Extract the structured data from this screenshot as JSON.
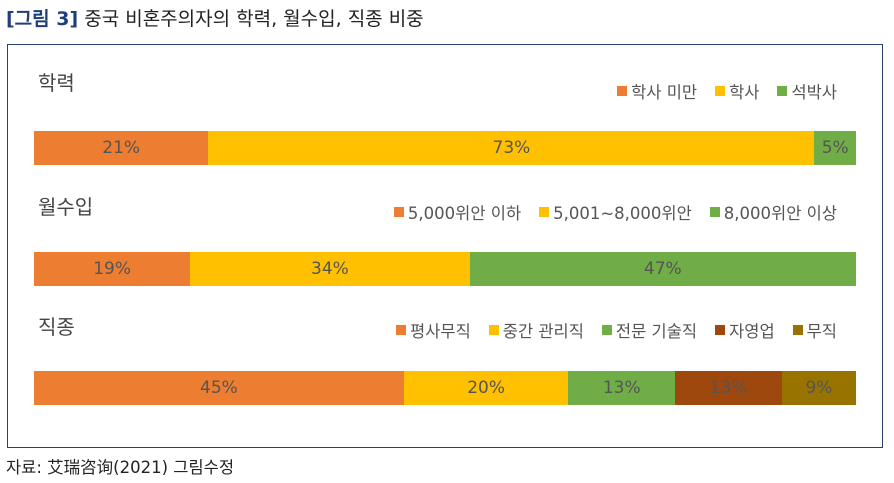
{
  "figure": {
    "number": "[그림 3]",
    "title": "중국 비혼주의자의 학력, 월수입, 직종 비중"
  },
  "source": "자료: 艾瑞咨询(2021) 그림수정",
  "chart_data": [
    {
      "type": "bar",
      "stacked": true,
      "orientation": "horizontal",
      "title": "학력",
      "series": [
        {
          "name": "학사 미만",
          "value": 21,
          "label": "21%",
          "color": "#ed7d31"
        },
        {
          "name": "학사",
          "value": 73,
          "label": "73%",
          "color": "#ffc000"
        },
        {
          "name": "석박사",
          "value": 5,
          "label": "5%",
          "color": "#70ad47"
        }
      ]
    },
    {
      "type": "bar",
      "stacked": true,
      "orientation": "horizontal",
      "title": "월수입",
      "series": [
        {
          "name": "5,000위안 이하",
          "value": 19,
          "label": "19%",
          "color": "#ed7d31"
        },
        {
          "name": "5,001~8,000위안",
          "value": 34,
          "label": "34%",
          "color": "#ffc000"
        },
        {
          "name": "8,000위안 이상",
          "value": 47,
          "label": "47%",
          "color": "#70ad47"
        }
      ]
    },
    {
      "type": "bar",
      "stacked": true,
      "orientation": "horizontal",
      "title": "직종",
      "series": [
        {
          "name": "평사무직",
          "value": 45,
          "label": "45%",
          "color": "#ed7d31"
        },
        {
          "name": "중간 관리직",
          "value": 20,
          "label": "20%",
          "color": "#ffc000"
        },
        {
          "name": "전문 기술직",
          "value": 13,
          "label": "13%",
          "color": "#70ad47"
        },
        {
          "name": "자영업",
          "value": 13,
          "label": "13%",
          "color": "#9e480e"
        },
        {
          "name": "무직",
          "value": 9,
          "label": "9%",
          "color": "#997300"
        }
      ]
    }
  ]
}
